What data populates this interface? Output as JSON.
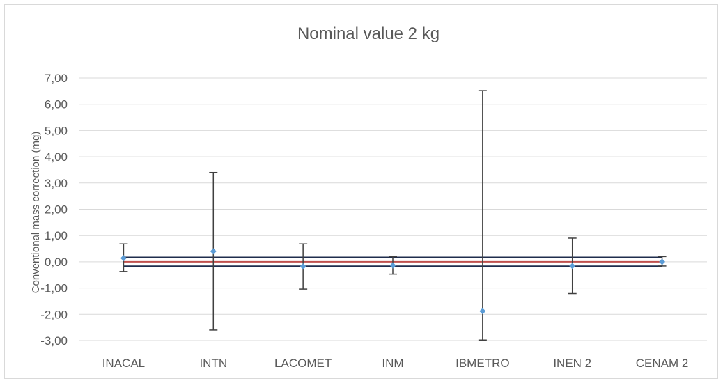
{
  "chart_data": {
    "type": "scatter",
    "title": "Nominal value 2 kg",
    "xlabel": "",
    "ylabel": "Conventional mass correction  (mg)",
    "ylim": [
      -3,
      7
    ],
    "yticks": [
      "7,00",
      "6,00",
      "5,00",
      "4,00",
      "3,00",
      "2,00",
      "1,00",
      "0,00",
      "-1,00",
      "-2,00",
      "-3,00"
    ],
    "ytick_values": [
      7,
      6,
      5,
      4,
      3,
      2,
      1,
      0,
      -1,
      -2,
      -3
    ],
    "grid": true,
    "categories": [
      "INACAL",
      "INTN",
      "LACOMET",
      "INM",
      "IBMETRO",
      "INEN 2",
      "CENAM 2"
    ],
    "values": [
      0.14,
      0.4,
      -0.18,
      -0.14,
      -1.88,
      -0.16,
      0.0
    ],
    "error_low": [
      -0.37,
      -2.6,
      -1.04,
      -0.47,
      -2.98,
      -1.21,
      -0.16
    ],
    "error_high": [
      0.68,
      3.4,
      0.68,
      0.2,
      6.52,
      0.9,
      0.2
    ],
    "reference_lines": [
      {
        "value": 0.0,
        "color": "#c0504d"
      },
      {
        "value": 0.17,
        "color": "#1f2d4d"
      },
      {
        "value": -0.17,
        "color": "#1f2d4d"
      }
    ],
    "colors": {
      "point": "#5b9bd5",
      "errorbar": "#404040",
      "grid": "#d9d9d9"
    }
  }
}
